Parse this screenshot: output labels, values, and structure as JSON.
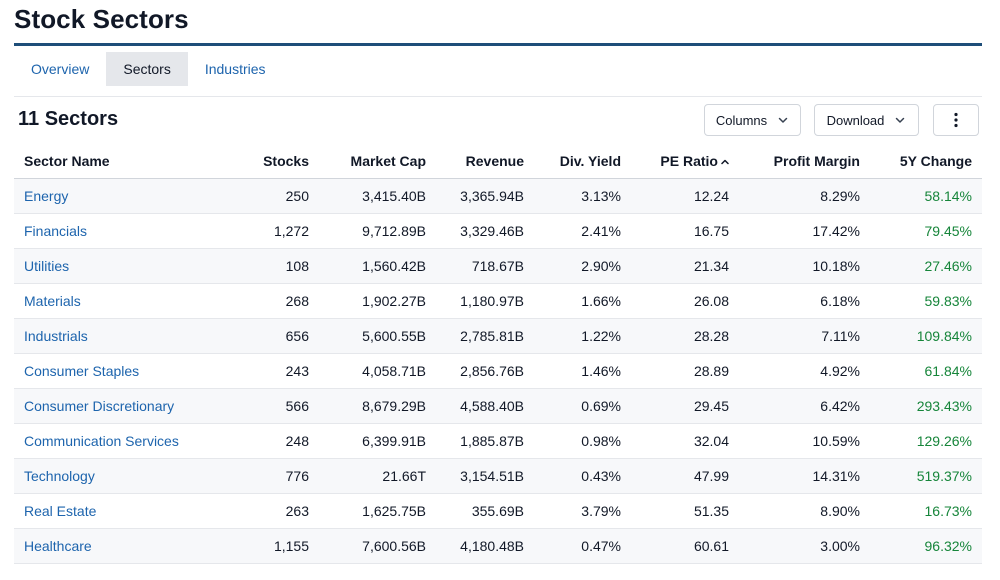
{
  "page": {
    "title": "Stock Sectors"
  },
  "tabs": [
    {
      "label": "Overview",
      "active": false
    },
    {
      "label": "Sectors",
      "active": true
    },
    {
      "label": "Industries",
      "active": false
    }
  ],
  "toolbar": {
    "count_label": "11 Sectors",
    "columns_label": "Columns",
    "download_label": "Download",
    "more_icon": "vertical-ellipsis-icon"
  },
  "table": {
    "columns": [
      "Sector Name",
      "Stocks",
      "Market Cap",
      "Revenue",
      "Div. Yield",
      "PE Ratio",
      "Profit Margin",
      "5Y Change"
    ],
    "sorted_column": "PE Ratio",
    "sort_direction": "ascending",
    "rows": [
      [
        "Energy",
        "250",
        "3,415.40B",
        "3,365.94B",
        "3.13%",
        "12.24",
        "8.29%",
        "58.14%"
      ],
      [
        "Financials",
        "1,272",
        "9,712.89B",
        "3,329.46B",
        "2.41%",
        "16.75",
        "17.42%",
        "79.45%"
      ],
      [
        "Utilities",
        "108",
        "1,560.42B",
        "718.67B",
        "2.90%",
        "21.34",
        "10.18%",
        "27.46%"
      ],
      [
        "Materials",
        "268",
        "1,902.27B",
        "1,180.97B",
        "1.66%",
        "26.08",
        "6.18%",
        "59.83%"
      ],
      [
        "Industrials",
        "656",
        "5,600.55B",
        "2,785.81B",
        "1.22%",
        "28.28",
        "7.11%",
        "109.84%"
      ],
      [
        "Consumer Staples",
        "243",
        "4,058.71B",
        "2,856.76B",
        "1.46%",
        "28.89",
        "4.92%",
        "61.84%"
      ],
      [
        "Consumer Discretionary",
        "566",
        "8,679.29B",
        "4,588.40B",
        "0.69%",
        "29.45",
        "6.42%",
        "293.43%"
      ],
      [
        "Communication Services",
        "248",
        "6,399.91B",
        "1,885.87B",
        "0.98%",
        "32.04",
        "10.59%",
        "129.26%"
      ],
      [
        "Technology",
        "776",
        "21.66T",
        "3,154.51B",
        "0.43%",
        "47.99",
        "14.31%",
        "519.37%"
      ],
      [
        "Real Estate",
        "263",
        "1,625.75B",
        "355.69B",
        "3.79%",
        "51.35",
        "8.90%",
        "16.73%"
      ],
      [
        "Healthcare",
        "1,155",
        "7,600.56B",
        "4,180.48B",
        "0.47%",
        "60.61",
        "3.00%",
        "96.32%"
      ]
    ]
  },
  "colors": {
    "accent_rule": "#1e4e79",
    "link": "#1d64ad",
    "positive": "#16853a",
    "active_tab_bg": "#e5e7eb",
    "stripe": "#f7f8fa"
  }
}
